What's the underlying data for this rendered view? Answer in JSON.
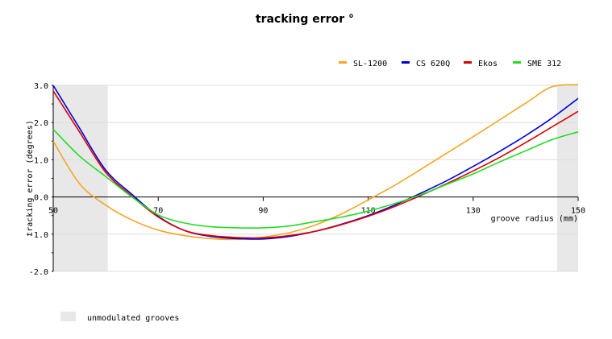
{
  "chart_data": {
    "type": "line",
    "title": "tracking error °",
    "xlabel": "groove radius (mm)",
    "ylabel": "tracking error (degrees)",
    "xlim": [
      50,
      150
    ],
    "ylim": [
      -2.0,
      3.0
    ],
    "x_ticks": [
      "50",
      "70",
      "90",
      "110",
      "130",
      "150"
    ],
    "y_ticks": [
      "3.0",
      "2.0",
      "1.0",
      "0.0",
      "-1.0",
      "-2.0"
    ],
    "grid": true,
    "legend_position": "top-right",
    "shaded_regions": [
      {
        "from": 50,
        "to": 60.4,
        "label": "unmodulated grooves"
      },
      {
        "from": 146,
        "to": 150,
        "label": "unmodulated grooves"
      }
    ],
    "shaded_legend_label": "unmodulated grooves",
    "shaded_color": "#e8e8e8",
    "x": [
      50,
      55,
      60,
      65,
      70,
      75,
      80,
      85,
      90,
      95,
      100,
      105,
      110,
      115,
      120,
      125,
      130,
      135,
      140,
      145,
      150
    ],
    "series": [
      {
        "name": "SL-1200",
        "color": "#f5a623",
        "values": [
          1.5,
          0.36,
          -0.22,
          -0.62,
          -0.89,
          -1.04,
          -1.12,
          -1.14,
          -1.08,
          -0.96,
          -0.75,
          -0.45,
          -0.08,
          0.31,
          0.74,
          1.18,
          1.62,
          2.07,
          2.52,
          2.96,
          3.02
        ]
      },
      {
        "name": "CS 620Q",
        "color": "#0000dd",
        "values": [
          3.0,
          1.85,
          0.72,
          0.07,
          -0.52,
          -0.9,
          -1.06,
          -1.12,
          -1.13,
          -1.06,
          -0.92,
          -0.73,
          -0.5,
          -0.22,
          0.1,
          0.44,
          0.82,
          1.22,
          1.65,
          2.12,
          2.65
        ]
      },
      {
        "name": "Ekos",
        "color": "#dd0000",
        "values": [
          2.85,
          1.75,
          0.66,
          0.02,
          -0.54,
          -0.9,
          -1.04,
          -1.09,
          -1.1,
          -1.04,
          -0.92,
          -0.74,
          -0.52,
          -0.26,
          0.04,
          0.36,
          0.7,
          1.06,
          1.46,
          1.88,
          2.3
        ]
      },
      {
        "name": "SME 312",
        "color": "#22dd22",
        "values": [
          1.82,
          1.1,
          0.55,
          0.0,
          -0.48,
          -0.7,
          -0.8,
          -0.83,
          -0.83,
          -0.78,
          -0.66,
          -0.54,
          -0.38,
          -0.18,
          0.06,
          0.34,
          0.62,
          0.94,
          1.24,
          1.54,
          1.75
        ]
      }
    ]
  }
}
